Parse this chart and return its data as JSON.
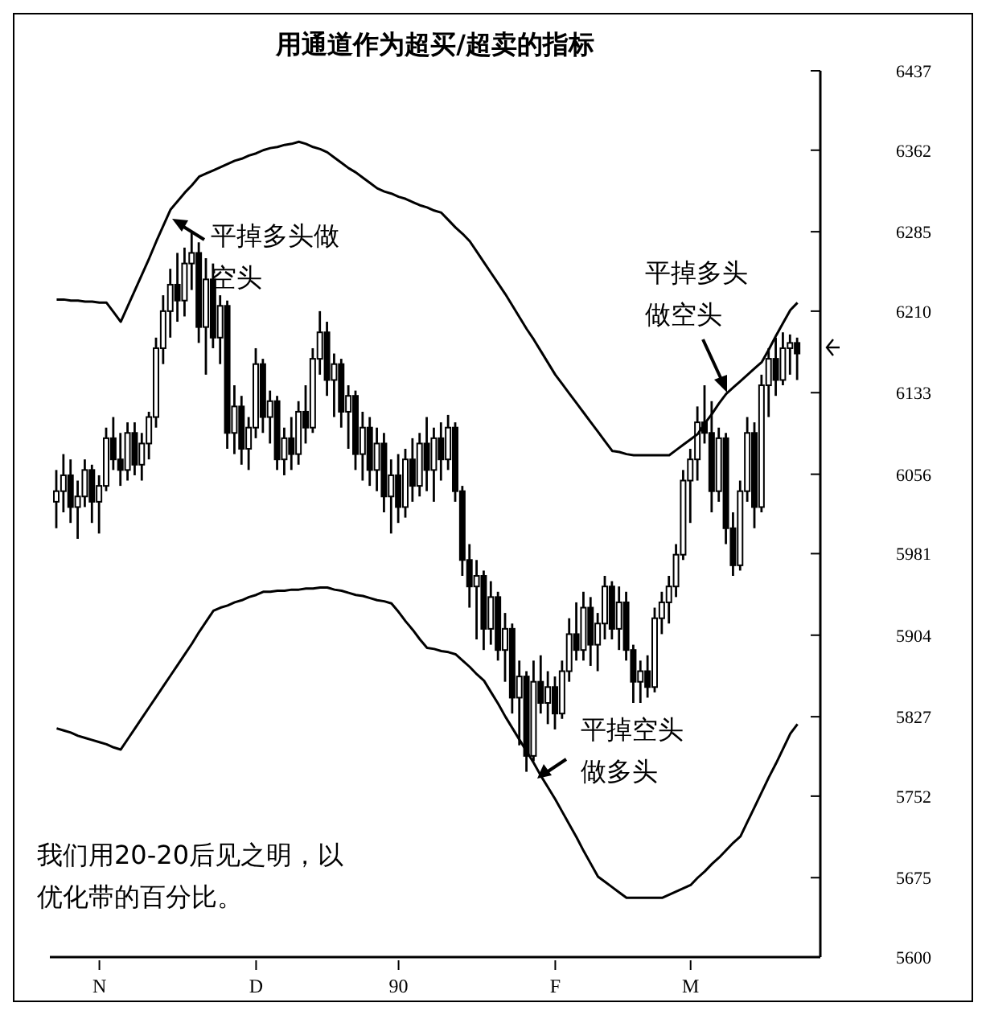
{
  "chart_data": {
    "type": "candlestick",
    "title": "用通道作为超买/超卖的指标",
    "annotations": [
      "平掉多头做空头",
      "平掉多头做空头",
      "平掉空头做多头",
      "我们用20-20后见之明，以优化带的百分比。"
    ],
    "categories": [
      null,
      null,
      null,
      null,
      null,
      null,
      "N",
      null,
      null,
      null,
      null,
      null,
      null,
      null,
      null,
      null,
      null,
      null,
      null,
      null,
      null,
      null,
      null,
      null,
      null,
      null,
      null,
      null,
      "D",
      null,
      null,
      null,
      null,
      null,
      null,
      null,
      null,
      null,
      null,
      null,
      null,
      null,
      null,
      null,
      null,
      null,
      null,
      null,
      "90",
      null,
      null,
      null,
      null,
      null,
      null,
      null,
      null,
      null,
      null,
      null,
      null,
      null,
      null,
      null,
      null,
      null,
      null,
      null,
      null,
      null,
      "F",
      null,
      null,
      null,
      null,
      null,
      null,
      null,
      null,
      null,
      null,
      null,
      null,
      null,
      null,
      null,
      null,
      null,
      null,
      "M",
      null,
      null,
      null,
      null,
      null,
      null,
      null,
      null,
      null,
      null,
      null,
      null,
      null,
      null,
      null
    ],
    "ohlc": [
      [
        6030,
        6060,
        6005,
        6040
      ],
      [
        6040,
        6075,
        6020,
        6055
      ],
      [
        6055,
        6070,
        6010,
        6025
      ],
      [
        6025,
        6050,
        5995,
        6035
      ],
      [
        6035,
        6070,
        6025,
        6060
      ],
      [
        6060,
        6065,
        6010,
        6030
      ],
      [
        6030,
        6055,
        6000,
        6045
      ],
      [
        6045,
        6100,
        6040,
        6090
      ],
      [
        6090,
        6110,
        6060,
        6070
      ],
      [
        6070,
        6095,
        6045,
        6060
      ],
      [
        6060,
        6105,
        6050,
        6095
      ],
      [
        6095,
        6105,
        6055,
        6065
      ],
      [
        6065,
        6095,
        6050,
        6085
      ],
      [
        6085,
        6115,
        6070,
        6110
      ],
      [
        6110,
        6185,
        6100,
        6175
      ],
      [
        6175,
        6225,
        6160,
        6210
      ],
      [
        6210,
        6250,
        6185,
        6235
      ],
      [
        6235,
        6265,
        6200,
        6220
      ],
      [
        6220,
        6270,
        6205,
        6255
      ],
      [
        6255,
        6285,
        6230,
        6265
      ],
      [
        6265,
        6275,
        6180,
        6195
      ],
      [
        6195,
        6260,
        6150,
        6240
      ],
      [
        6240,
        6255,
        6175,
        6185
      ],
      [
        6185,
        6225,
        6160,
        6215
      ],
      [
        6215,
        6220,
        6080,
        6095
      ],
      [
        6095,
        6140,
        6075,
        6120
      ],
      [
        6120,
        6130,
        6065,
        6080
      ],
      [
        6080,
        6110,
        6060,
        6100
      ],
      [
        6100,
        6175,
        6090,
        6160
      ],
      [
        6160,
        6165,
        6095,
        6110
      ],
      [
        6110,
        6135,
        6085,
        6125
      ],
      [
        6125,
        6130,
        6060,
        6070
      ],
      [
        6070,
        6100,
        6055,
        6090
      ],
      [
        6090,
        6110,
        6060,
        6075
      ],
      [
        6075,
        6125,
        6065,
        6115
      ],
      [
        6115,
        6140,
        6085,
        6100
      ],
      [
        6100,
        6175,
        6095,
        6165
      ],
      [
        6165,
        6210,
        6150,
        6190
      ],
      [
        6190,
        6200,
        6130,
        6145
      ],
      [
        6145,
        6170,
        6110,
        6160
      ],
      [
        6160,
        6165,
        6100,
        6115
      ],
      [
        6115,
        6140,
        6080,
        6130
      ],
      [
        6130,
        6135,
        6060,
        6075
      ],
      [
        6075,
        6115,
        6050,
        6100
      ],
      [
        6100,
        6110,
        6045,
        6060
      ],
      [
        6060,
        6100,
        6040,
        6085
      ],
      [
        6085,
        6095,
        6020,
        6035
      ],
      [
        6035,
        6070,
        6000,
        6055
      ],
      [
        6055,
        6075,
        6010,
        6025
      ],
      [
        6025,
        6080,
        6015,
        6070
      ],
      [
        6070,
        6090,
        6030,
        6045
      ],
      [
        6045,
        6095,
        6035,
        6085
      ],
      [
        6085,
        6110,
        6040,
        6060
      ],
      [
        6060,
        6100,
        6030,
        6090
      ],
      [
        6090,
        6105,
        6050,
        6070
      ],
      [
        6070,
        6112,
        6060,
        6100
      ],
      [
        6100,
        6105,
        6030,
        6040
      ],
      [
        6040,
        6045,
        5960,
        5975
      ],
      [
        5975,
        5990,
        5930,
        5950
      ],
      [
        5950,
        5975,
        5900,
        5960
      ],
      [
        5960,
        5965,
        5890,
        5910
      ],
      [
        5910,
        5955,
        5895,
        5940
      ],
      [
        5940,
        5945,
        5880,
        5890
      ],
      [
        5890,
        5925,
        5860,
        5910
      ],
      [
        5910,
        5915,
        5830,
        5845
      ],
      [
        5845,
        5880,
        5800,
        5865
      ],
      [
        5865,
        5870,
        5775,
        5790
      ],
      [
        5790,
        5880,
        5785,
        5860
      ],
      [
        5860,
        5885,
        5830,
        5840
      ],
      [
        5840,
        5870,
        5820,
        5855
      ],
      [
        5855,
        5865,
        5815,
        5830
      ],
      [
        5830,
        5880,
        5825,
        5870
      ],
      [
        5870,
        5920,
        5860,
        5905
      ],
      [
        5905,
        5935,
        5880,
        5890
      ],
      [
        5890,
        5945,
        5880,
        5930
      ],
      [
        5930,
        5940,
        5875,
        5895
      ],
      [
        5895,
        5925,
        5870,
        5915
      ],
      [
        5915,
        5960,
        5900,
        5950
      ],
      [
        5950,
        5955,
        5900,
        5910
      ],
      [
        5910,
        5950,
        5890,
        5935
      ],
      [
        5935,
        5945,
        5880,
        5890
      ],
      [
        5890,
        5895,
        5840,
        5860
      ],
      [
        5860,
        5880,
        5840,
        5870
      ],
      [
        5870,
        5885,
        5845,
        5855
      ],
      [
        5855,
        5930,
        5850,
        5920
      ],
      [
        5920,
        5945,
        5905,
        5935
      ],
      [
        5935,
        5960,
        5915,
        5950
      ],
      [
        5950,
        5990,
        5940,
        5980
      ],
      [
        5980,
        6060,
        5975,
        6050
      ],
      [
        6050,
        6080,
        6010,
        6070
      ],
      [
        6070,
        6120,
        6050,
        6105
      ],
      [
        6105,
        6140,
        6085,
        6095
      ],
      [
        6095,
        6125,
        6020,
        6040
      ],
      [
        6040,
        6100,
        6030,
        6090
      ],
      [
        6090,
        6095,
        5990,
        6005
      ],
      [
        6005,
        6020,
        5960,
        5970
      ],
      [
        5970,
        6050,
        5965,
        6040
      ],
      [
        6040,
        6110,
        6030,
        6095
      ],
      [
        6095,
        6105,
        6005,
        6025
      ],
      [
        6025,
        6150,
        6020,
        6140
      ],
      [
        6140,
        6175,
        6110,
        6165
      ],
      [
        6165,
        6185,
        6130,
        6145
      ],
      [
        6145,
        6190,
        6140,
        6175
      ],
      [
        6175,
        6188,
        6150,
        6180
      ],
      [
        6180,
        6185,
        6145,
        6170
      ]
    ],
    "series": [
      {
        "type": "line",
        "color": "#000000",
        "values": [
          6221,
          6221,
          6220,
          6220,
          6219,
          6219,
          6218,
          6218,
          6209,
          6200,
          6215,
          6230,
          6245,
          6260,
          6276,
          6291,
          6306,
          6314,
          6322,
          6329,
          6337,
          6340,
          6343,
          6346,
          6349,
          6352,
          6354,
          6357,
          6359,
          6362,
          6364,
          6365,
          6367,
          6368,
          6370,
          6368,
          6365,
          6363,
          6360,
          6355,
          6350,
          6345,
          6341,
          6336,
          6331,
          6326,
          6323,
          6321,
          6318,
          6316,
          6313,
          6310,
          6308,
          6305,
          6303,
          6296,
          6289,
          6283,
          6276,
          6266,
          6256,
          6246,
          6236,
          6226,
          6215,
          6204,
          6193,
          6183,
          6172,
          6161,
          6150,
          6141,
          6132,
          6123,
          6114,
          6105,
          6096,
          6087,
          6078,
          6077,
          6075,
          6074,
          6074,
          6074,
          6074,
          6074,
          6074,
          6079,
          6084,
          6089,
          6094,
          6104,
          6113,
          6123,
          6132,
          6138,
          6144,
          6150,
          6156,
          6162,
          6174,
          6187,
          6199,
          6211,
          6218
        ]
      },
      {
        "type": "line",
        "color": "#000000",
        "values": [
          5816,
          5814,
          5812,
          5809,
          5807,
          5805,
          5803,
          5801,
          5798,
          5796,
          5806,
          5816,
          5826,
          5836,
          5846,
          5856,
          5866,
          5876,
          5886,
          5896,
          5907,
          5917,
          5927,
          5930,
          5932,
          5935,
          5937,
          5940,
          5942,
          5945,
          5945,
          5946,
          5946,
          5947,
          5947,
          5948,
          5948,
          5949,
          5949,
          5947,
          5946,
          5944,
          5942,
          5941,
          5939,
          5937,
          5936,
          5934,
          5926,
          5917,
          5909,
          5900,
          5892,
          5891,
          5889,
          5888,
          5886,
          5880,
          5874,
          5867,
          5861,
          5850,
          5839,
          5827,
          5816,
          5805,
          5794,
          5783,
          5771,
          5760,
          5749,
          5737,
          5725,
          5713,
          5700,
          5688,
          5676,
          5671,
          5666,
          5661,
          5656,
          5656,
          5656,
          5656,
          5656,
          5656,
          5659,
          5662,
          5665,
          5668,
          5675,
          5681,
          5688,
          5694,
          5701,
          5708,
          5714,
          5728,
          5742,
          5756,
          5770,
          5783,
          5797,
          5811,
          5820
        ]
      }
    ],
    "color": "#000000",
    "ylim": [
      5600,
      6437
    ],
    "yticks": [
      5600,
      5675,
      5752,
      5827,
      5904,
      5981,
      6056,
      6133,
      6210,
      6285,
      6362,
      6437
    ],
    "marker": "none",
    "line_style": "solid"
  }
}
